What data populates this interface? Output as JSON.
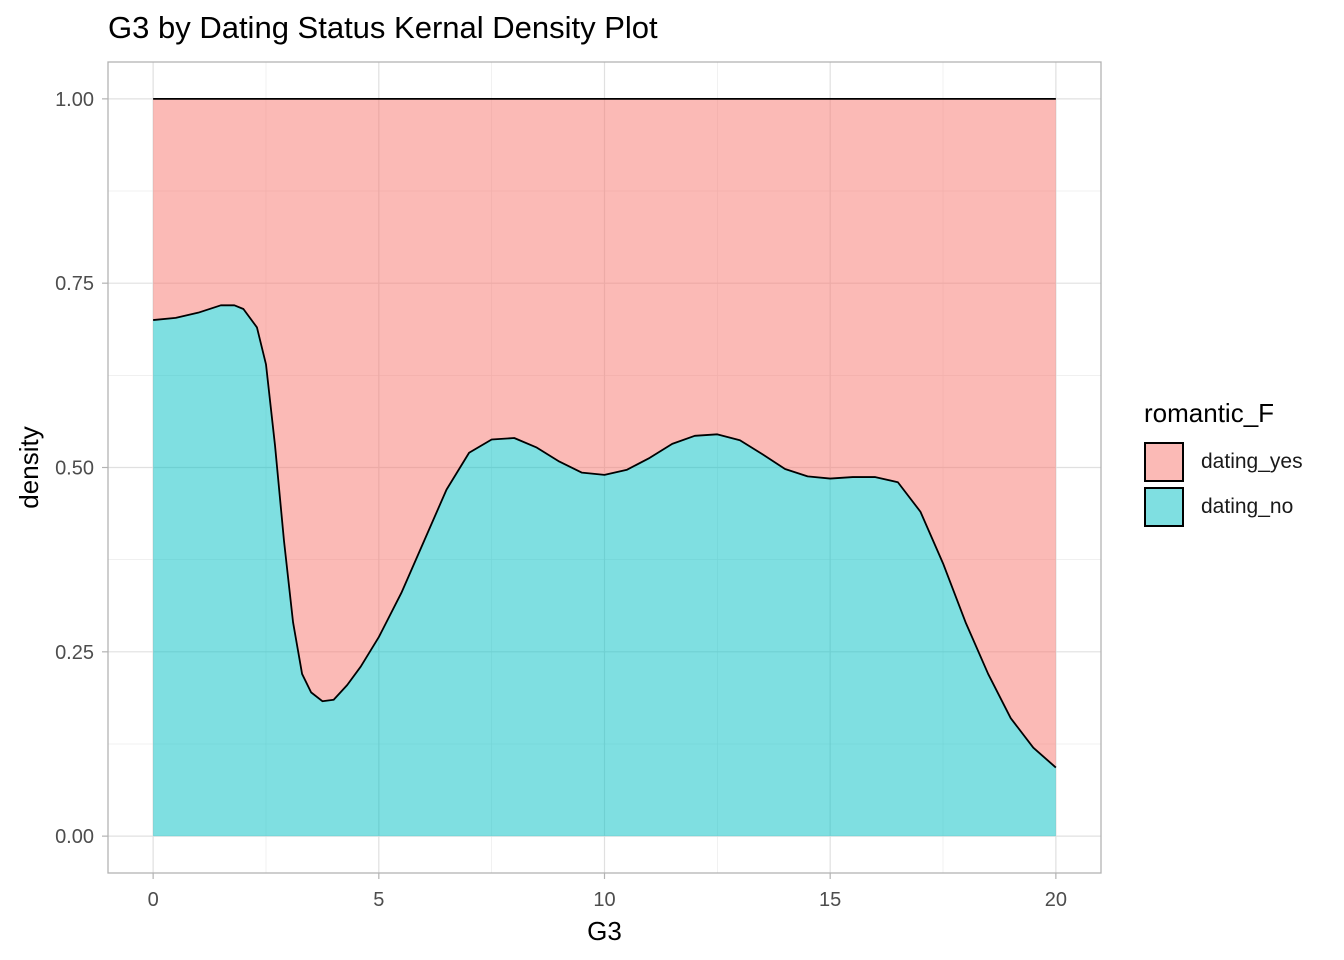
{
  "chart_data": {
    "type": "area",
    "title": "G3 by Dating Status Kernal Density Plot",
    "xlabel": "G3",
    "ylabel": "density",
    "xlim": [
      -1,
      21
    ],
    "ylim": [
      -0.05,
      1.05
    ],
    "x_ticks": [
      0,
      5,
      10,
      15,
      20
    ],
    "x_tick_labels": [
      "0",
      "5",
      "10",
      "15",
      "20"
    ],
    "y_ticks": [
      0,
      0.25,
      0.5,
      0.75,
      1
    ],
    "y_tick_labels": [
      "0.00",
      "0.25",
      "0.50",
      "0.75",
      "1.00"
    ],
    "grid": true,
    "stacked": true,
    "position": "fill",
    "legend": {
      "title": "romantic_F",
      "placement": "right",
      "entries": [
        {
          "label": "dating_yes",
          "color": "#F8766D"
        },
        {
          "label": "dating_no",
          "color": "#00BFC4"
        }
      ]
    },
    "fill_alpha": 0.5,
    "x": [
      0,
      0.5,
      1,
      1.5,
      1.8,
      2,
      2.3,
      2.5,
      2.7,
      2.9,
      3.1,
      3.3,
      3.5,
      3.75,
      4,
      4.3,
      4.6,
      5,
      5.5,
      6,
      6.5,
      7,
      7.5,
      8,
      8.5,
      9,
      9.5,
      10,
      10.5,
      11,
      11.5,
      12,
      12.5,
      13,
      13.5,
      14,
      14.5,
      15,
      15.5,
      16,
      16.5,
      17,
      17.5,
      18,
      18.5,
      19,
      19.5,
      20
    ],
    "series": [
      {
        "name": "dating_no",
        "values": [
          0.7,
          0.703,
          0.71,
          0.72,
          0.72,
          0.715,
          0.69,
          0.64,
          0.53,
          0.4,
          0.29,
          0.22,
          0.195,
          0.183,
          0.185,
          0.205,
          0.23,
          0.27,
          0.33,
          0.4,
          0.47,
          0.52,
          0.538,
          0.54,
          0.527,
          0.508,
          0.493,
          0.49,
          0.497,
          0.513,
          0.532,
          0.543,
          0.545,
          0.537,
          0.518,
          0.498,
          0.488,
          0.485,
          0.487,
          0.487,
          0.48,
          0.44,
          0.37,
          0.29,
          0.22,
          0.16,
          0.12,
          0.093
        ]
      },
      {
        "name": "dating_yes",
        "values": [
          0.3,
          0.297,
          0.29,
          0.28,
          0.28,
          0.285,
          0.31,
          0.36,
          0.47,
          0.6,
          0.71,
          0.78,
          0.805,
          0.817,
          0.815,
          0.795,
          0.77,
          0.73,
          0.67,
          0.6,
          0.53,
          0.48,
          0.462,
          0.46,
          0.473,
          0.492,
          0.507,
          0.51,
          0.503,
          0.487,
          0.468,
          0.457,
          0.455,
          0.463,
          0.482,
          0.502,
          0.512,
          0.515,
          0.513,
          0.513,
          0.52,
          0.56,
          0.63,
          0.71,
          0.78,
          0.84,
          0.88,
          0.907
        ]
      }
    ]
  }
}
